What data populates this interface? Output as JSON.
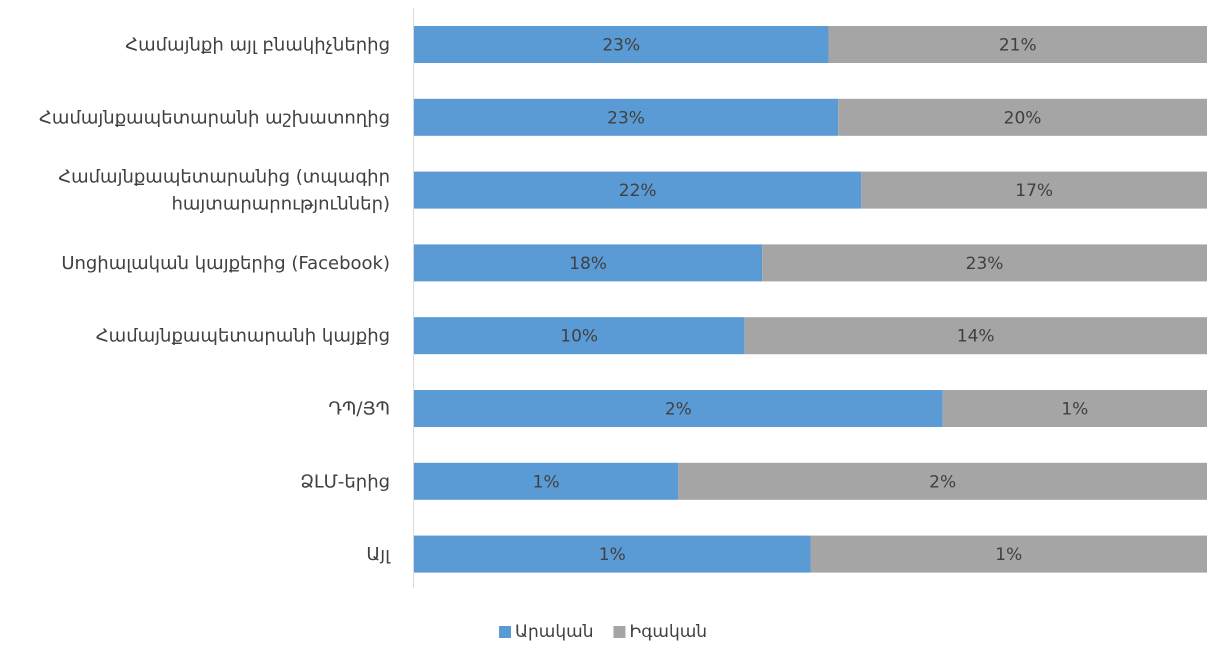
{
  "chart_data": {
    "type": "bar",
    "orientation": "horizontal",
    "stacked": "100%",
    "categories": [
      [
        "Համայնքի այլ բնակիչներից"
      ],
      [
        "Համայնքապետարանի աշխատողից"
      ],
      [
        "Համայնքապետարանից (տպագիր",
        "հայտարարություններ)"
      ],
      [
        "Սոցիալական կայքերից (Facebook)"
      ],
      [
        "Համայնքապետարանի կայքից"
      ],
      [
        "ԴՊ/ՅՊ"
      ],
      [
        "ՁԼՄ-երից"
      ],
      [
        "Այլ"
      ]
    ],
    "series": [
      {
        "name": "Արական",
        "color": "#5b9bd5",
        "values": [
          23,
          23,
          22,
          18,
          10,
          2,
          1,
          1
        ],
        "labels": [
          "23%",
          "23%",
          "22%",
          "18%",
          "10%",
          "2%",
          "1%",
          "1%"
        ]
      },
      {
        "name": "Իգական",
        "color": "#a5a5a5",
        "values": [
          21,
          20,
          17,
          23,
          14,
          1,
          2,
          1
        ],
        "labels": [
          "21%",
          "20%",
          "17%",
          "23%",
          "14%",
          "1%",
          "2%",
          "1%"
        ]
      }
    ],
    "legend_position": "bottom",
    "grid": false
  }
}
